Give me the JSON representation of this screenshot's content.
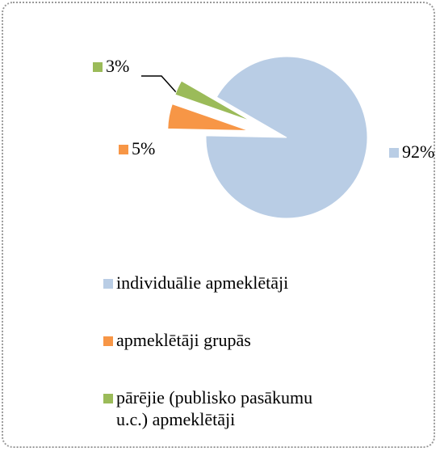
{
  "chart_data": {
    "type": "pie",
    "categories": [
      "individuālie apmeklētāji",
      "apmeklētāji grupās",
      "pārējie (publisko pasākumu u.c.) apmeklētāji"
    ],
    "values": [
      92,
      5,
      3
    ],
    "value_labels": [
      "92%",
      "5%",
      "3%"
    ],
    "colors": [
      "#b9cde5",
      "#f79646",
      "#9bbb59"
    ],
    "legend": "bottom"
  }
}
